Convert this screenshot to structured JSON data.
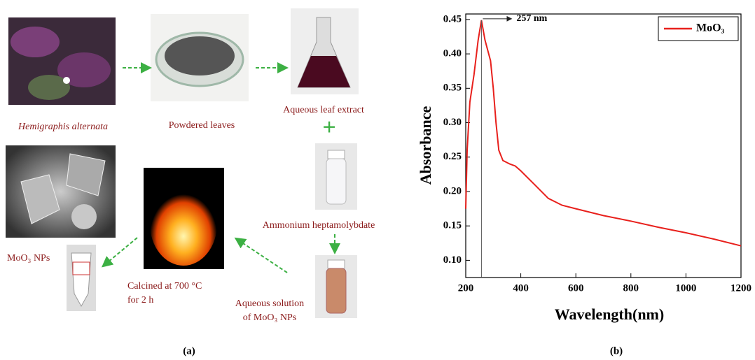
{
  "diagram": {
    "plant": "Hemigraphis alternata",
    "powder": "Powdered leaves",
    "extract": "Aqueous leaf extract",
    "precursor": "Ammonium heptamolybdate",
    "solution": [
      "Aqueous solution",
      "of MoO₃ NPs"
    ],
    "calcined": [
      "Calcined at 700 °C",
      "for 2 h"
    ],
    "product": "MoO₃ NPs",
    "caption": "(a)"
  },
  "chart_caption": "(b)",
  "chart_data": {
    "type": "line",
    "x_label": "Wavelength(nm)",
    "y_label": "Absorbance",
    "x": [
      200,
      205,
      215,
      230,
      245,
      257,
      270,
      290,
      300,
      310,
      320,
      335,
      360,
      380,
      400,
      450,
      500,
      550,
      600,
      700,
      800,
      900,
      1000,
      1100,
      1200
    ],
    "series": [
      {
        "name": "MoO₃",
        "color": "#e8201c",
        "values": [
          0.175,
          0.26,
          0.33,
          0.37,
          0.42,
          0.449,
          0.42,
          0.39,
          0.35,
          0.3,
          0.26,
          0.245,
          0.24,
          0.237,
          0.23,
          0.21,
          0.19,
          0.18,
          0.175,
          0.165,
          0.157,
          0.148,
          0.14,
          0.131,
          0.121
        ]
      }
    ],
    "annotation": {
      "label": "257 nm",
      "x": 257
    },
    "xlim": [
      200,
      1200
    ],
    "xticks": [
      200,
      400,
      600,
      800,
      1000,
      1200
    ],
    "ylim": [
      0.075,
      0.458
    ],
    "yticks": [
      {
        "value": 0.1,
        "label": "0.10"
      },
      0.15,
      {
        "value": 0.2,
        "label": "0.20"
      },
      0.25,
      {
        "value": 0.3,
        "label": "0.30"
      },
      0.35,
      {
        "value": 0.4,
        "label": "0.40"
      },
      0.45
    ],
    "legend": "upper right"
  }
}
